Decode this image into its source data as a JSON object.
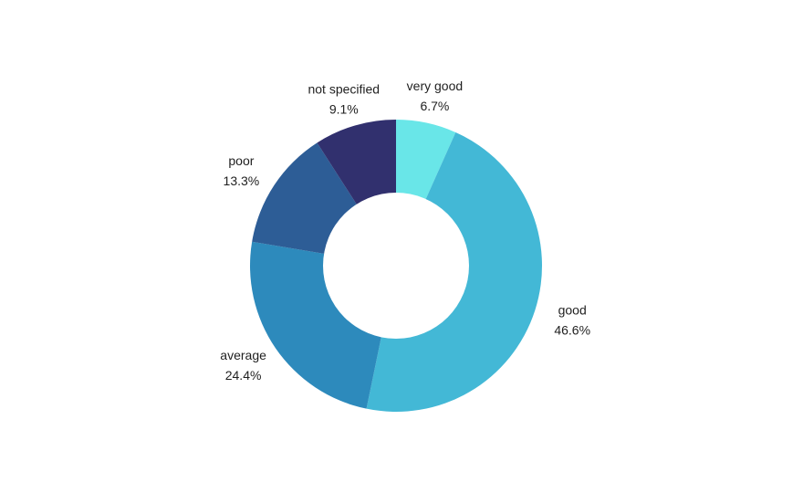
{
  "chart_data": {
    "type": "pie",
    "donut": true,
    "title": "",
    "legend": "none",
    "slices": [
      {
        "name": "very good",
        "value": 6.7,
        "label": "6.7%",
        "color": "#69E6E8"
      },
      {
        "name": "good",
        "value": 46.6,
        "label": "46.6%",
        "color": "#43B8D6"
      },
      {
        "name": "average",
        "value": 24.4,
        "label": "24.4%",
        "color": "#2D8ABC"
      },
      {
        "name": "poor",
        "value": 13.3,
        "label": "13.3%",
        "color": "#2D5D96"
      },
      {
        "name": "not specified",
        "value": 9.1,
        "label": "9.1%",
        "color": "#31306E"
      }
    ]
  }
}
